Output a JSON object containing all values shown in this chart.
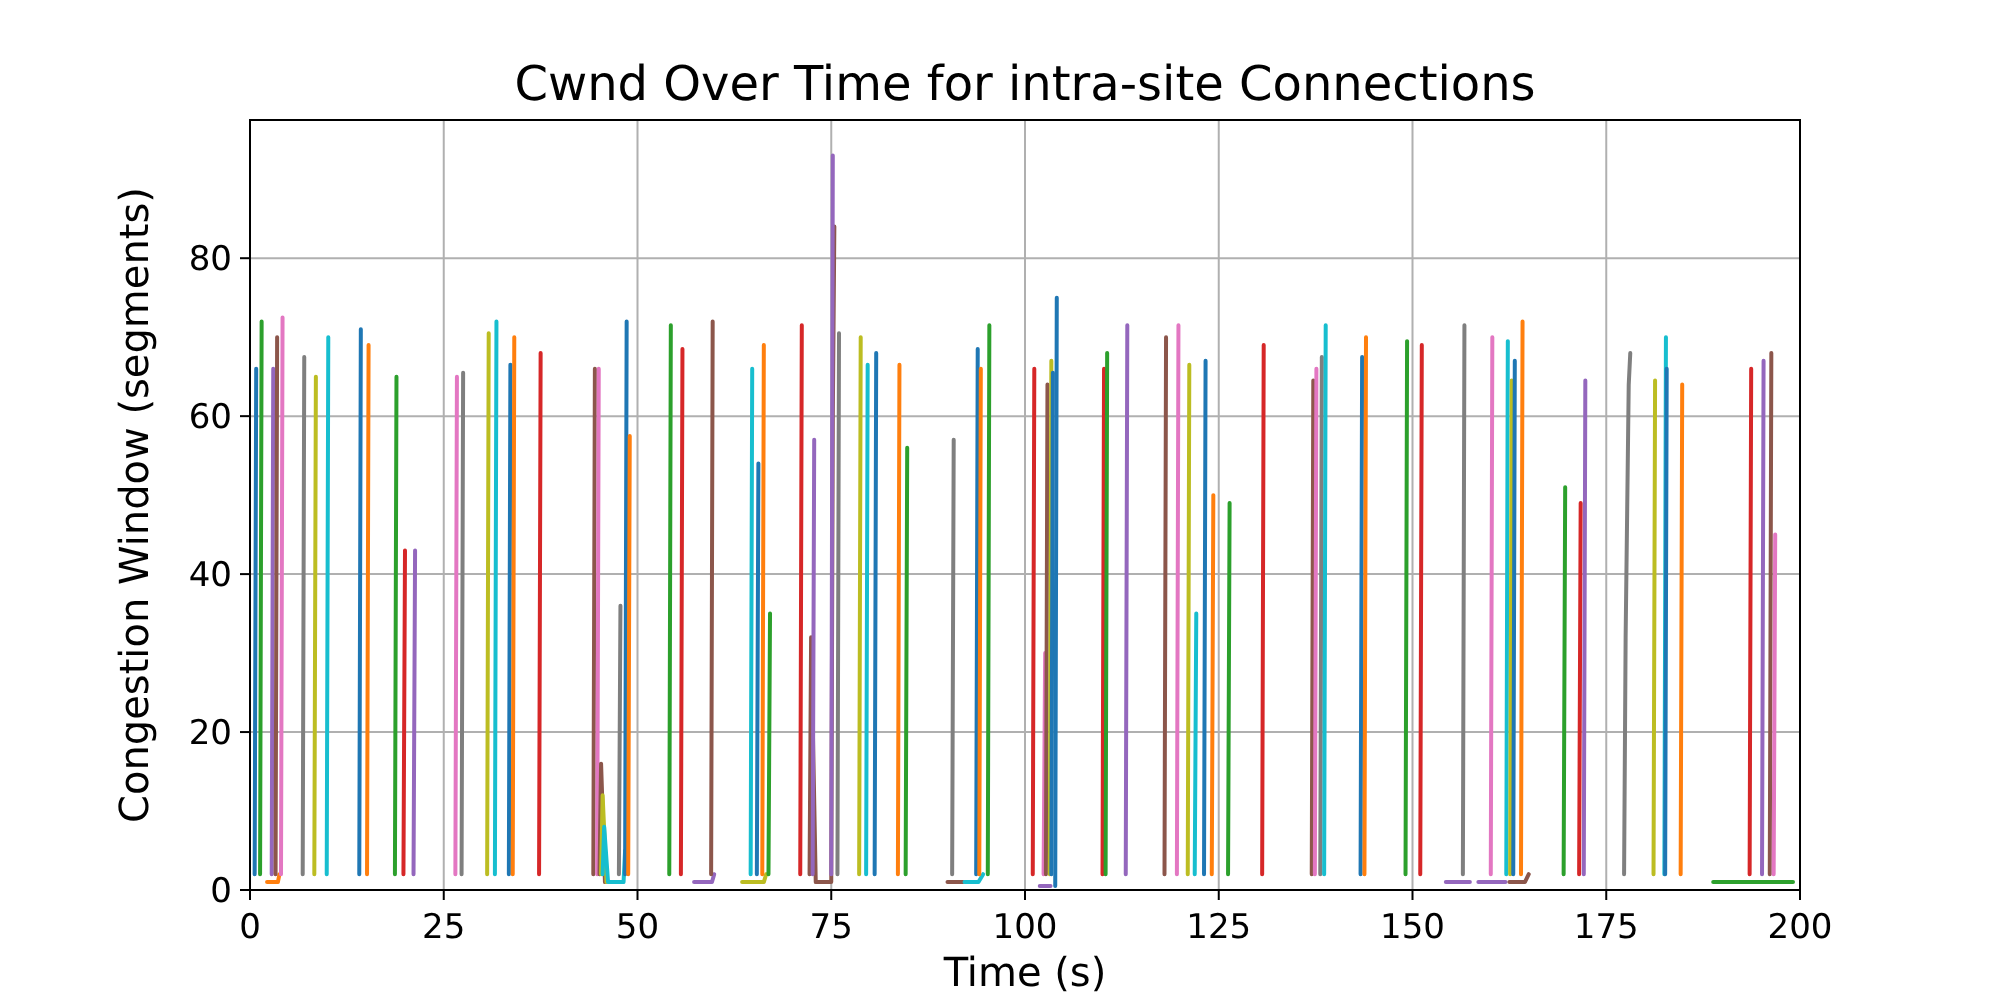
{
  "chart_data": {
    "type": "line",
    "title": "Cwnd Over Time for intra-site Connections",
    "xlabel": "Time (s)",
    "ylabel": "Congestion Window (segments)",
    "xlim": [
      0,
      200
    ],
    "xticks": [
      0,
      25,
      50,
      75,
      100,
      125,
      150,
      175,
      200
    ],
    "ylim": [
      0,
      97.5
    ],
    "yticks": [
      0,
      20,
      40,
      60,
      80
    ],
    "grid": true,
    "marker": "none",
    "line_style": "solid",
    "series": [
      {
        "color": "#1f77b4",
        "x": [
          0.6,
          0.8
        ],
        "values": [
          2,
          66
        ]
      },
      {
        "color": "#2ca02c",
        "x": [
          1.3,
          1.5
        ],
        "values": [
          2,
          72
        ]
      },
      {
        "color": "#ff7f0e",
        "x": [
          2.2,
          3.6,
          3.8
        ],
        "values": [
          1,
          1,
          2
        ]
      },
      {
        "color": "#9467bd",
        "x": [
          2.8,
          3.0
        ],
        "values": [
          2,
          66
        ]
      },
      {
        "color": "#8c564b",
        "x": [
          3.3,
          3.5
        ],
        "values": [
          2,
          70
        ]
      },
      {
        "color": "#e377c2",
        "x": [
          4.0,
          4.2
        ],
        "values": [
          2,
          72.5
        ]
      },
      {
        "color": "#7f7f7f",
        "x": [
          6.8,
          7.0
        ],
        "values": [
          2,
          67.5
        ]
      },
      {
        "color": "#bcbd22",
        "x": [
          8.3,
          8.5
        ],
        "values": [
          2,
          65
        ]
      },
      {
        "color": "#17becf",
        "x": [
          9.9,
          10.1
        ],
        "values": [
          2,
          70
        ]
      },
      {
        "color": "#1f77b4",
        "x": [
          14.1,
          14.3
        ],
        "values": [
          2,
          71
        ]
      },
      {
        "color": "#ff7f0e",
        "x": [
          15.1,
          15.3
        ],
        "values": [
          2,
          69
        ]
      },
      {
        "color": "#2ca02c",
        "x": [
          18.7,
          18.9
        ],
        "values": [
          2,
          65
        ]
      },
      {
        "color": "#d62728",
        "x": [
          19.8,
          20.0
        ],
        "values": [
          2,
          43
        ]
      },
      {
        "color": "#9467bd",
        "x": [
          21.1,
          21.3
        ],
        "values": [
          2,
          43
        ]
      },
      {
        "color": "#e377c2",
        "x": [
          26.5,
          26.7
        ],
        "values": [
          2,
          65
        ]
      },
      {
        "color": "#7f7f7f",
        "x": [
          27.3,
          27.5
        ],
        "values": [
          2,
          65.5
        ]
      },
      {
        "color": "#bcbd22",
        "x": [
          30.6,
          30.8
        ],
        "values": [
          2,
          70.5
        ]
      },
      {
        "color": "#17becf",
        "x": [
          31.6,
          31.8
        ],
        "values": [
          2,
          72
        ]
      },
      {
        "color": "#1f77b4",
        "x": [
          33.4,
          33.6
        ],
        "values": [
          2,
          66.5
        ]
      },
      {
        "color": "#ff7f0e",
        "x": [
          33.9,
          34.1
        ],
        "values": [
          2,
          70
        ]
      },
      {
        "color": "#d62728",
        "x": [
          37.3,
          37.5
        ],
        "values": [
          2,
          68
        ]
      },
      {
        "color": "#8c564b",
        "x": [
          44.3,
          44.5
        ],
        "values": [
          2,
          66
        ]
      },
      {
        "color": "#e377c2",
        "x": [
          44.8,
          45.0
        ],
        "values": [
          2,
          66
        ]
      },
      {
        "color": "#8c564b",
        "x": [
          45.1,
          45.3,
          45.8
        ],
        "values": [
          2,
          16,
          1
        ]
      },
      {
        "color": "#bcbd22",
        "x": [
          45.3,
          45.5,
          46.0
        ],
        "values": [
          2,
          12,
          1
        ]
      },
      {
        "color": "#17becf",
        "x": [
          45.5,
          45.7,
          46.2,
          48.2,
          48.4
        ],
        "values": [
          2,
          8,
          1,
          1,
          5
        ]
      },
      {
        "color": "#7f7f7f",
        "x": [
          47.6,
          47.8
        ],
        "values": [
          2,
          36
        ]
      },
      {
        "color": "#1f77b4",
        "x": [
          48.4,
          48.6
        ],
        "values": [
          2,
          72
        ]
      },
      {
        "color": "#ff7f0e",
        "x": [
          48.8,
          49.0
        ],
        "values": [
          2,
          57.5
        ]
      },
      {
        "color": "#2ca02c",
        "x": [
          54.1,
          54.3
        ],
        "values": [
          2,
          71.5
        ]
      },
      {
        "color": "#d62728",
        "x": [
          55.6,
          55.8
        ],
        "values": [
          2,
          68.5
        ]
      },
      {
        "color": "#9467bd",
        "x": [
          57.3,
          59.6,
          59.9
        ],
        "values": [
          1,
          1,
          2
        ]
      },
      {
        "color": "#8c564b",
        "x": [
          59.5,
          59.7
        ],
        "values": [
          2,
          72
        ]
      },
      {
        "color": "#bcbd22",
        "x": [
          63.5,
          66.3,
          66.6
        ],
        "values": [
          1,
          1,
          2
        ]
      },
      {
        "color": "#17becf",
        "x": [
          64.6,
          64.8
        ],
        "values": [
          2,
          66
        ]
      },
      {
        "color": "#1f77b4",
        "x": [
          65.4,
          65.6
        ],
        "values": [
          2,
          54
        ]
      },
      {
        "color": "#ff7f0e",
        "x": [
          66.1,
          66.3
        ],
        "values": [
          2,
          69
        ]
      },
      {
        "color": "#2ca02c",
        "x": [
          66.9,
          67.1
        ],
        "values": [
          2,
          35
        ]
      },
      {
        "color": "#d62728",
        "x": [
          71.0,
          71.2
        ],
        "values": [
          2,
          71.5
        ]
      },
      {
        "color": "#8c564b",
        "x": [
          72.2,
          72.4,
          73.0,
          75.0,
          75.2,
          75.4
        ],
        "values": [
          2,
          32,
          1,
          1,
          60,
          84
        ]
      },
      {
        "color": "#9467bd",
        "x": [
          72.6,
          72.8
        ],
        "values": [
          2,
          57
        ]
      },
      {
        "color": "#9467bd",
        "x": [
          75.0,
          75.2
        ],
        "values": [
          2,
          93
        ]
      },
      {
        "color": "#7f7f7f",
        "x": [
          75.8,
          76.0
        ],
        "values": [
          2,
          70.5
        ]
      },
      {
        "color": "#bcbd22",
        "x": [
          78.6,
          78.8
        ],
        "values": [
          2,
          70
        ]
      },
      {
        "color": "#17becf",
        "x": [
          79.5,
          79.7
        ],
        "values": [
          2,
          66.5
        ]
      },
      {
        "color": "#1f77b4",
        "x": [
          80.6,
          80.8
        ],
        "values": [
          2,
          68
        ]
      },
      {
        "color": "#ff7f0e",
        "x": [
          83.6,
          83.8
        ],
        "values": [
          2,
          66.5
        ]
      },
      {
        "color": "#2ca02c",
        "x": [
          84.6,
          84.8
        ],
        "values": [
          2,
          56
        ]
      },
      {
        "color": "#8c564b",
        "x": [
          90.0,
          92.0
        ],
        "values": [
          1,
          1
        ]
      },
      {
        "color": "#7f7f7f",
        "x": [
          90.6,
          90.8
        ],
        "values": [
          2,
          57
        ]
      },
      {
        "color": "#17becf",
        "x": [
          92.2,
          94.0,
          94.6
        ],
        "values": [
          1,
          1,
          2
        ]
      },
      {
        "color": "#1f77b4",
        "x": [
          93.7,
          93.9
        ],
        "values": [
          2,
          68.5
        ]
      },
      {
        "color": "#ff7f0e",
        "x": [
          94.1,
          94.3
        ],
        "values": [
          2,
          66
        ]
      },
      {
        "color": "#2ca02c",
        "x": [
          95.2,
          95.4
        ],
        "values": [
          2,
          71.5
        ]
      },
      {
        "color": "#d62728",
        "x": [
          101.0,
          101.2
        ],
        "values": [
          2,
          66
        ]
      },
      {
        "color": "#9467bd",
        "x": [
          101.9,
          103.3
        ],
        "values": [
          0.5,
          0.5
        ]
      },
      {
        "color": "#e377c2",
        "x": [
          102.4,
          102.6
        ],
        "values": [
          2,
          30
        ]
      },
      {
        "color": "#8c564b",
        "x": [
          102.7,
          102.9
        ],
        "values": [
          2,
          64
        ]
      },
      {
        "color": "#bcbd22",
        "x": [
          103.2,
          103.4
        ],
        "values": [
          2,
          67
        ]
      },
      {
        "color": "#1f77b4",
        "x": [
          103.4,
          103.6
        ],
        "values": [
          2,
          65.5
        ]
      },
      {
        "color": "#1f77b4",
        "x": [
          103.9,
          104.1
        ],
        "values": [
          0.5,
          75
        ]
      },
      {
        "color": "#d62728",
        "x": [
          110.0,
          110.2
        ],
        "values": [
          2,
          66
        ]
      },
      {
        "color": "#2ca02c",
        "x": [
          110.4,
          110.6
        ],
        "values": [
          2,
          68
        ]
      },
      {
        "color": "#9467bd",
        "x": [
          113.0,
          113.2
        ],
        "values": [
          2,
          71.5
        ]
      },
      {
        "color": "#8c564b",
        "x": [
          118.0,
          118.2
        ],
        "values": [
          2,
          70
        ]
      },
      {
        "color": "#e377c2",
        "x": [
          119.6,
          119.8
        ],
        "values": [
          2,
          71.5
        ]
      },
      {
        "color": "#bcbd22",
        "x": [
          121.0,
          121.2
        ],
        "values": [
          2,
          66.5
        ]
      },
      {
        "color": "#17becf",
        "x": [
          121.9,
          122.1
        ],
        "values": [
          2,
          35
        ]
      },
      {
        "color": "#1f77b4",
        "x": [
          123.1,
          123.3
        ],
        "values": [
          2,
          67
        ]
      },
      {
        "color": "#ff7f0e",
        "x": [
          124.1,
          124.3
        ],
        "values": [
          2,
          50
        ]
      },
      {
        "color": "#2ca02c",
        "x": [
          126.2,
          126.4
        ],
        "values": [
          2,
          49
        ]
      },
      {
        "color": "#d62728",
        "x": [
          130.6,
          130.8
        ],
        "values": [
          2,
          69
        ]
      },
      {
        "color": "#8c564b",
        "x": [
          137.0,
          137.2
        ],
        "values": [
          2,
          64.5
        ]
      },
      {
        "color": "#e377c2",
        "x": [
          137.4,
          137.6
        ],
        "values": [
          2,
          66
        ]
      },
      {
        "color": "#7f7f7f",
        "x": [
          138.1,
          138.3
        ],
        "values": [
          2,
          67.5
        ]
      },
      {
        "color": "#17becf",
        "x": [
          138.6,
          138.8
        ],
        "values": [
          2,
          71.5
        ]
      },
      {
        "color": "#1f77b4",
        "x": [
          143.3,
          143.5
        ],
        "values": [
          2,
          67.5
        ]
      },
      {
        "color": "#ff7f0e",
        "x": [
          143.8,
          144.0
        ],
        "values": [
          2,
          70
        ]
      },
      {
        "color": "#2ca02c",
        "x": [
          149.1,
          149.3
        ],
        "values": [
          2,
          69.5
        ]
      },
      {
        "color": "#d62728",
        "x": [
          151.0,
          151.2
        ],
        "values": [
          2,
          69
        ]
      },
      {
        "color": "#9467bd",
        "x": [
          154.3,
          157.4
        ],
        "values": [
          1,
          1
        ]
      },
      {
        "color": "#7f7f7f",
        "x": [
          156.5,
          156.7
        ],
        "values": [
          2,
          71.5
        ]
      },
      {
        "color": "#e377c2",
        "x": [
          160.1,
          160.3
        ],
        "values": [
          2,
          70
        ]
      },
      {
        "color": "#9467bd",
        "x": [
          158.5,
          162.0
        ],
        "values": [
          1,
          1
        ]
      },
      {
        "color": "#17becf",
        "x": [
          162.1,
          162.3
        ],
        "values": [
          2,
          69.5
        ]
      },
      {
        "color": "#bcbd22",
        "x": [
          162.6,
          162.8
        ],
        "values": [
          2,
          64.5
        ]
      },
      {
        "color": "#1f77b4",
        "x": [
          163.0,
          163.2
        ],
        "values": [
          2,
          67
        ]
      },
      {
        "color": "#8c564b",
        "x": [
          162.5,
          164.5,
          165.0
        ],
        "values": [
          1,
          1,
          2
        ]
      },
      {
        "color": "#ff7f0e",
        "x": [
          164.0,
          164.2
        ],
        "values": [
          2,
          72
        ]
      },
      {
        "color": "#2ca02c",
        "x": [
          169.5,
          169.7
        ],
        "values": [
          2,
          51
        ]
      },
      {
        "color": "#d62728",
        "x": [
          171.5,
          171.7
        ],
        "values": [
          2,
          49
        ]
      },
      {
        "color": "#9467bd",
        "x": [
          172.1,
          172.3
        ],
        "values": [
          2,
          64.5
        ]
      },
      {
        "color": "#7f7f7f",
        "x": [
          177.3,
          177.5,
          177.9,
          178.1
        ],
        "values": [
          2,
          32,
          64,
          68
        ]
      },
      {
        "color": "#bcbd22",
        "x": [
          181.1,
          181.3
        ],
        "values": [
          2,
          64.5
        ]
      },
      {
        "color": "#17becf",
        "x": [
          182.5,
          182.7
        ],
        "values": [
          2,
          70
        ]
      },
      {
        "color": "#1f77b4",
        "x": [
          182.6,
          182.8
        ],
        "values": [
          2,
          66
        ]
      },
      {
        "color": "#ff7f0e",
        "x": [
          184.6,
          184.8
        ],
        "values": [
          2,
          64
        ]
      },
      {
        "color": "#2ca02c",
        "x": [
          188.8,
          199.1
        ],
        "values": [
          1,
          1
        ]
      },
      {
        "color": "#d62728",
        "x": [
          193.5,
          193.7
        ],
        "values": [
          2,
          66
        ]
      },
      {
        "color": "#9467bd",
        "x": [
          195.1,
          195.3
        ],
        "values": [
          2,
          67
        ]
      },
      {
        "color": "#8c564b",
        "x": [
          196.1,
          196.3
        ],
        "values": [
          2,
          68
        ]
      },
      {
        "color": "#e377c2",
        "x": [
          196.6,
          196.8
        ],
        "values": [
          2,
          45
        ]
      }
    ]
  }
}
